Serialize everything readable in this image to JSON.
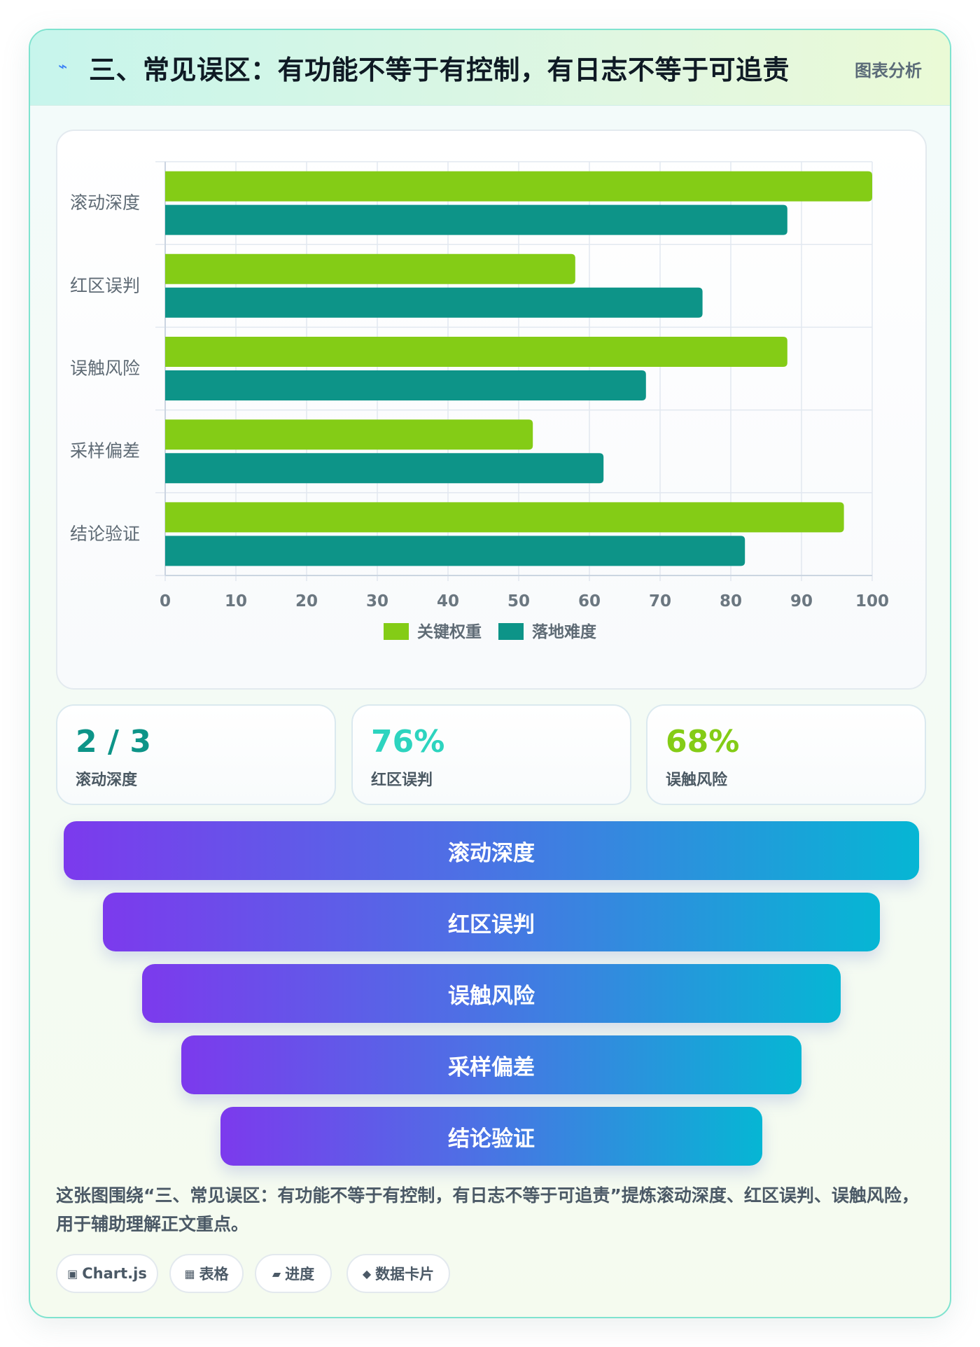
{
  "header": {
    "icon": "lightning-icon",
    "title": "三、常见误区：有功能不等于有控制，有日志不等于可追责",
    "tag": "图表分析"
  },
  "chart_data": {
    "type": "bar",
    "orientation": "horizontal",
    "categories": [
      "滚动深度",
      "红区误判",
      "误触风险",
      "采样偏差",
      "结论验证"
    ],
    "series": [
      {
        "name": "关键权重",
        "color": "#84cc16",
        "values": [
          100,
          58,
          88,
          52,
          96
        ]
      },
      {
        "name": "落地难度",
        "color": "#0d9488",
        "values": [
          88,
          76,
          68,
          62,
          82
        ]
      }
    ],
    "xlim": [
      0,
      100
    ],
    "xticks": [
      0,
      10,
      20,
      30,
      40,
      50,
      60,
      70,
      80,
      90,
      100
    ],
    "grid": true,
    "legend": "bottom"
  },
  "stats": [
    {
      "value": "2 / 3",
      "label": "滚动深度",
      "color": "#0d9488"
    },
    {
      "value": "76%",
      "label": "红区误判",
      "color": "#2dd4bf"
    },
    {
      "value": "68%",
      "label": "误触风险",
      "color": "#84cc16"
    }
  ],
  "funnel": [
    "滚动深度",
    "红区误判",
    "误触风险",
    "采样偏差",
    "结论验证"
  ],
  "description": "这张图围绕“三、常见误区：有功能不等于有控制，有日志不等于可追责”提炼滚动深度、红区误判、误触风险，用于辅助理解正文重点。",
  "chips": [
    {
      "icon": "▣",
      "icon_name": "chart-icon",
      "label": "Chart.js"
    },
    {
      "icon": "▦",
      "icon_name": "table-icon",
      "label": "表格"
    },
    {
      "icon": "▰",
      "icon_name": "progress-icon",
      "label": "进度"
    },
    {
      "icon": "◆",
      "icon_name": "diamond-icon",
      "label": "数据卡片"
    }
  ]
}
